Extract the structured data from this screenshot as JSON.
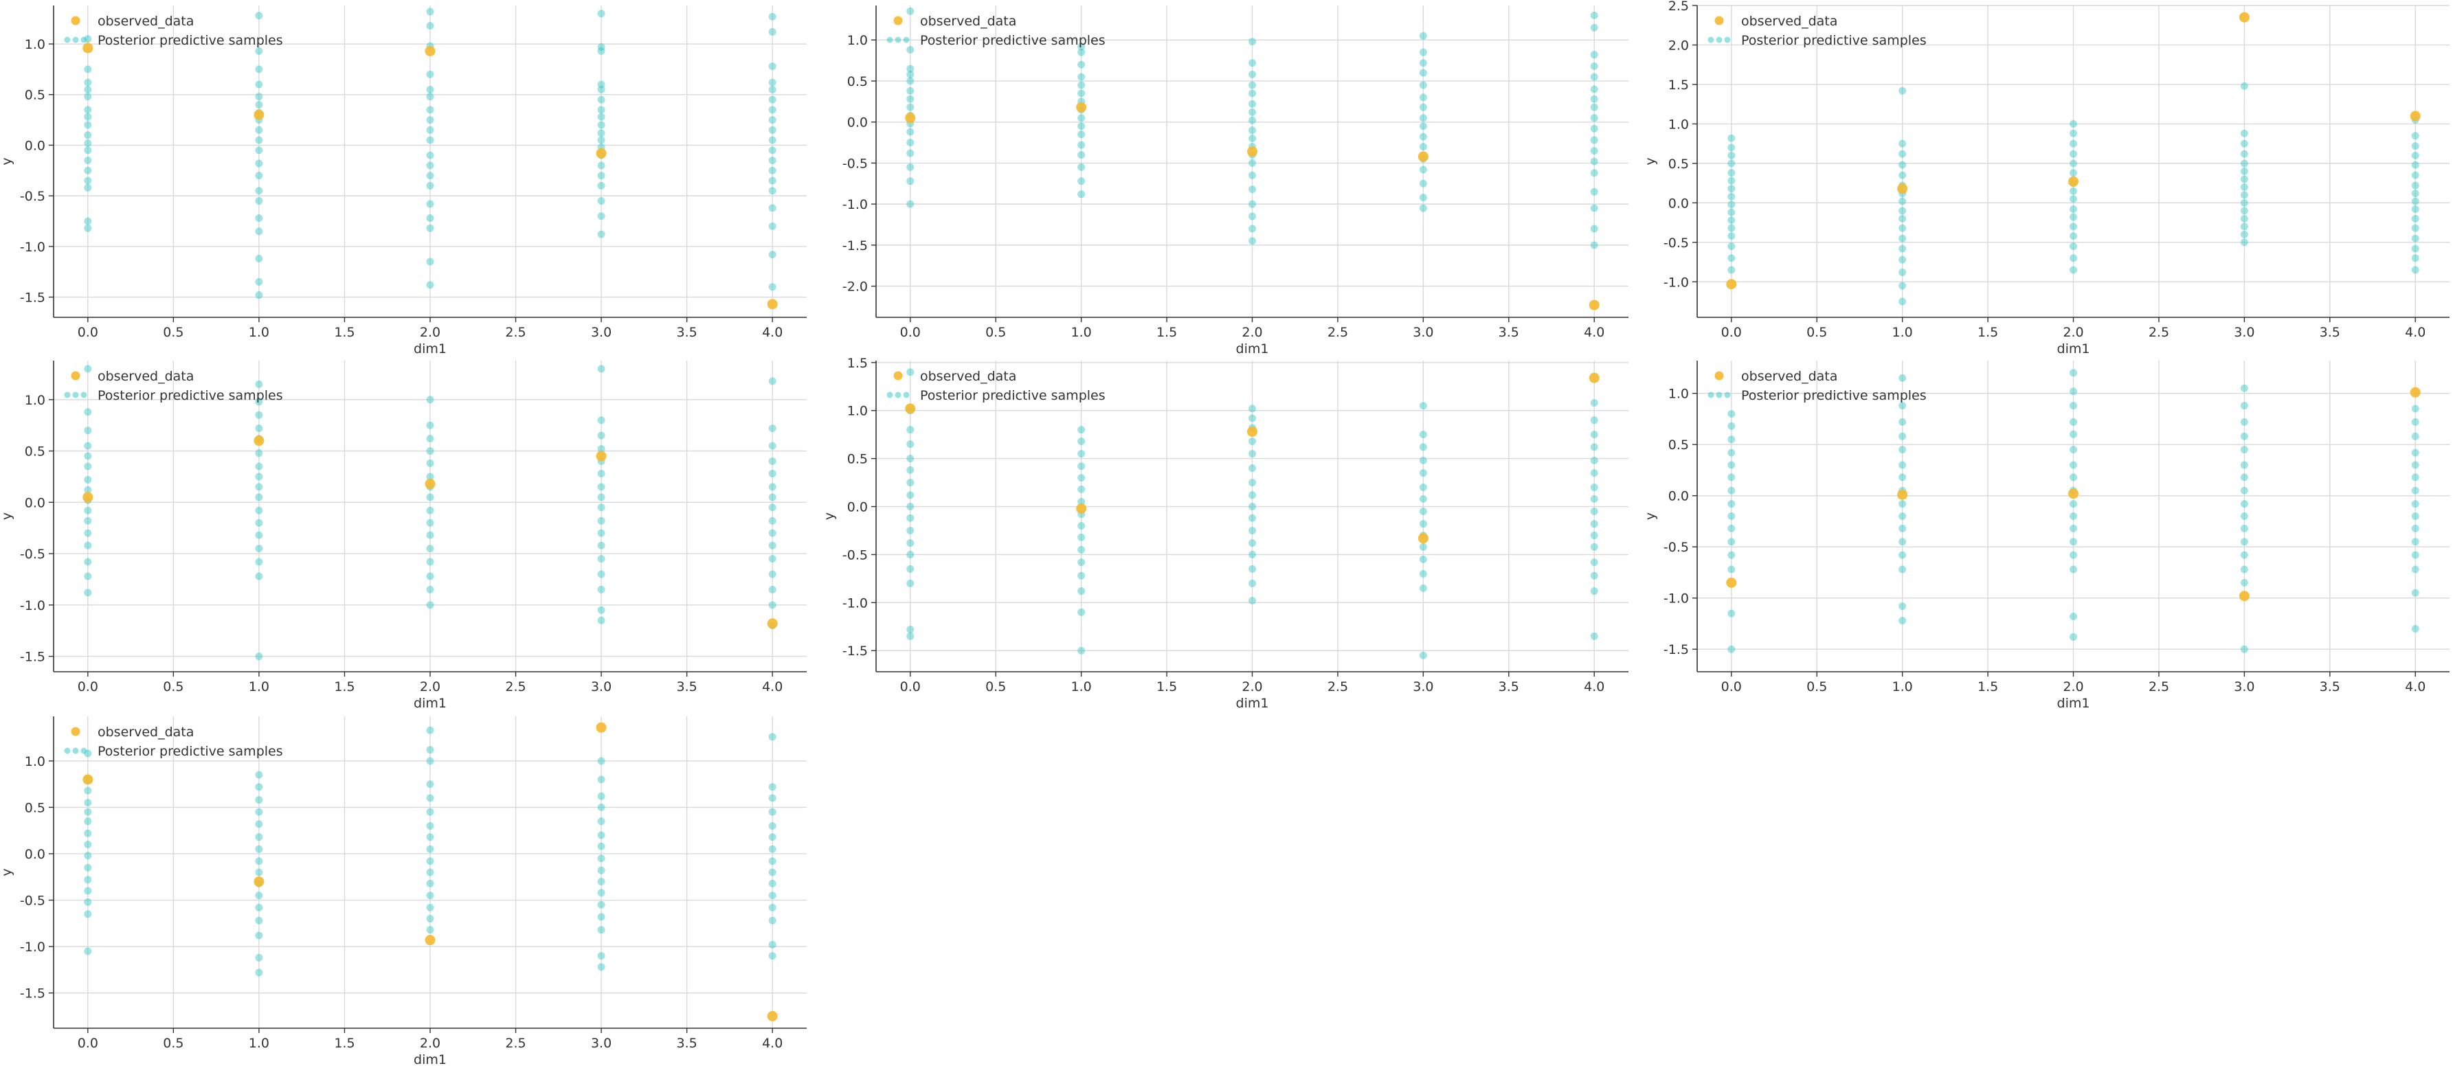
{
  "colors": {
    "observed": "#f5b82e",
    "samples": "#2ec4c4",
    "grid": "#d9d9d9",
    "axis": "#333333"
  },
  "legend": {
    "observed_label": "observed_data",
    "samples_label": "Posterior predictive samples",
    "placement": "upper-left"
  },
  "chart_data": [
    {
      "type": "scatter",
      "xlabel": "dim1",
      "ylabel": "y",
      "xlim": [
        -0.2,
        4.2
      ],
      "ylim": [
        -1.7,
        1.38
      ],
      "xticks": [
        0.0,
        0.5,
        1.0,
        1.5,
        2.0,
        2.5,
        3.0,
        3.5,
        4.0
      ],
      "yticks": [
        -1.5,
        -1.0,
        -0.5,
        0.0,
        0.5,
        1.0
      ],
      "grid": true,
      "observed": [
        [
          0,
          0.96
        ],
        [
          1,
          0.3
        ],
        [
          2,
          0.93
        ],
        [
          3,
          -0.08
        ],
        [
          4,
          -1.57
        ]
      ],
      "samples": [
        [
          -0.82,
          -0.75,
          -0.42,
          -0.35,
          -0.25,
          -0.15,
          -0.05,
          0.02,
          0.1,
          0.2,
          0.28,
          0.35,
          0.48,
          0.55,
          0.62,
          0.75,
          1.05
        ],
        [
          -1.48,
          -1.35,
          -1.12,
          -0.85,
          -0.72,
          -0.55,
          -0.45,
          -0.3,
          -0.18,
          -0.05,
          0.05,
          0.15,
          0.25,
          0.32,
          0.4,
          0.48,
          0.6,
          0.75,
          0.93,
          1.28
        ],
        [
          -1.38,
          -1.15,
          -0.82,
          -0.72,
          -0.58,
          -0.4,
          -0.3,
          -0.2,
          -0.1,
          0.05,
          0.15,
          0.25,
          0.35,
          0.48,
          0.55,
          0.7,
          0.98,
          1.18,
          1.32
        ],
        [
          -0.88,
          -0.7,
          -0.55,
          -0.4,
          -0.3,
          -0.2,
          -0.1,
          -0.02,
          0.05,
          0.12,
          0.2,
          0.28,
          0.35,
          0.45,
          0.55,
          0.6,
          0.93,
          0.97,
          1.3
        ],
        [
          -1.4,
          -1.08,
          -0.8,
          -0.62,
          -0.45,
          -0.35,
          -0.25,
          -0.15,
          -0.05,
          0.05,
          0.15,
          0.25,
          0.35,
          0.45,
          0.55,
          0.62,
          0.78,
          1.12,
          1.27
        ]
      ]
    },
    {
      "type": "scatter",
      "xlabel": "dim1",
      "ylabel": "",
      "xlim": [
        -0.2,
        4.2
      ],
      "ylim": [
        -2.38,
        1.42
      ],
      "xticks": [
        0.0,
        0.5,
        1.0,
        1.5,
        2.0,
        2.5,
        3.0,
        3.5,
        4.0
      ],
      "yticks": [
        -2.0,
        -1.5,
        -1.0,
        -0.5,
        0.0,
        0.5,
        1.0
      ],
      "grid": true,
      "observed": [
        [
          0,
          0.05
        ],
        [
          1,
          0.18
        ],
        [
          2,
          -0.36
        ],
        [
          3,
          -0.42
        ],
        [
          4,
          -2.23
        ]
      ],
      "samples": [
        [
          -1.0,
          -0.72,
          -0.55,
          -0.38,
          -0.25,
          -0.12,
          -0.02,
          0.08,
          0.18,
          0.28,
          0.38,
          0.5,
          0.58,
          0.65,
          0.88,
          1.35
        ],
        [
          -0.88,
          -0.72,
          -0.55,
          -0.4,
          -0.28,
          -0.15,
          -0.05,
          0.05,
          0.15,
          0.25,
          0.35,
          0.45,
          0.55,
          0.7,
          0.85,
          0.92
        ],
        [
          -1.45,
          -1.3,
          -1.15,
          -1.0,
          -0.82,
          -0.65,
          -0.5,
          -0.4,
          -0.3,
          -0.2,
          -0.1,
          0.02,
          0.12,
          0.22,
          0.35,
          0.45,
          0.58,
          0.72,
          0.98
        ],
        [
          -1.05,
          -0.92,
          -0.75,
          -0.58,
          -0.45,
          -0.3,
          -0.18,
          -0.05,
          0.05,
          0.18,
          0.3,
          0.45,
          0.6,
          0.72,
          0.85,
          1.05
        ],
        [
          -1.5,
          -1.3,
          -1.05,
          -0.85,
          -0.62,
          -0.48,
          -0.35,
          -0.22,
          -0.08,
          0.05,
          0.18,
          0.28,
          0.4,
          0.55,
          0.68,
          0.82,
          1.15,
          1.3
        ]
      ]
    },
    {
      "type": "scatter",
      "xlabel": "dim1",
      "ylabel": "y",
      "xlim": [
        -0.2,
        4.2
      ],
      "ylim": [
        -1.45,
        2.5
      ],
      "xticks": [
        0.0,
        0.5,
        1.0,
        1.5,
        2.0,
        2.5,
        3.0,
        3.5,
        4.0
      ],
      "yticks": [
        -1.0,
        -0.5,
        0.0,
        0.5,
        1.0,
        1.5,
        2.0,
        2.5
      ],
      "grid": true,
      "observed": [
        [
          0,
          -1.03
        ],
        [
          1,
          0.18
        ],
        [
          2,
          0.27
        ],
        [
          3,
          2.35
        ],
        [
          4,
          1.1
        ]
      ],
      "samples": [
        [
          -0.85,
          -0.7,
          -0.55,
          -0.42,
          -0.32,
          -0.22,
          -0.12,
          -0.02,
          0.08,
          0.18,
          0.28,
          0.38,
          0.5,
          0.6,
          0.7,
          0.82
        ],
        [
          -1.25,
          -1.05,
          -0.88,
          -0.72,
          -0.58,
          -0.45,
          -0.32,
          -0.2,
          -0.1,
          0.02,
          0.12,
          0.22,
          0.35,
          0.48,
          0.62,
          0.75,
          1.42
        ],
        [
          -0.85,
          -0.7,
          -0.55,
          -0.42,
          -0.3,
          -0.18,
          -0.08,
          0.05,
          0.15,
          0.25,
          0.38,
          0.5,
          0.62,
          0.75,
          0.88,
          1.0
        ],
        [
          -0.5,
          -0.4,
          -0.3,
          -0.2,
          -0.1,
          0.0,
          0.1,
          0.2,
          0.3,
          0.4,
          0.5,
          0.62,
          0.75,
          0.88,
          1.48
        ],
        [
          -0.85,
          -0.7,
          -0.58,
          -0.45,
          -0.32,
          -0.2,
          -0.08,
          0.02,
          0.12,
          0.22,
          0.35,
          0.48,
          0.6,
          0.72,
          0.85,
          1.05
        ]
      ]
    },
    {
      "type": "scatter",
      "xlabel": "dim1",
      "ylabel": "y",
      "xlim": [
        -0.2,
        4.2
      ],
      "ylim": [
        -1.65,
        1.38
      ],
      "xticks": [
        0.0,
        0.5,
        1.0,
        1.5,
        2.0,
        2.5,
        3.0,
        3.5,
        4.0
      ],
      "yticks": [
        -1.5,
        -1.0,
        -0.5,
        0.0,
        0.5,
        1.0
      ],
      "grid": true,
      "observed": [
        [
          0,
          0.05
        ],
        [
          1,
          0.6
        ],
        [
          2,
          0.18
        ],
        [
          3,
          0.45
        ],
        [
          4,
          -1.18
        ]
      ],
      "samples": [
        [
          -0.88,
          -0.72,
          -0.58,
          -0.42,
          -0.3,
          -0.18,
          -0.08,
          0.02,
          0.12,
          0.22,
          0.35,
          0.45,
          0.55,
          0.7,
          0.88,
          1.3
        ],
        [
          -1.5,
          -0.72,
          -0.58,
          -0.45,
          -0.32,
          -0.2,
          -0.08,
          0.05,
          0.15,
          0.25,
          0.35,
          0.48,
          0.62,
          0.72,
          0.85,
          0.98,
          1.15
        ],
        [
          -1.0,
          -0.85,
          -0.72,
          -0.58,
          -0.45,
          -0.32,
          -0.2,
          -0.08,
          0.05,
          0.15,
          0.25,
          0.38,
          0.5,
          0.62,
          0.75,
          1.0
        ],
        [
          -1.15,
          -1.05,
          -0.85,
          -0.7,
          -0.55,
          -0.42,
          -0.3,
          -0.18,
          -0.05,
          0.05,
          0.15,
          0.28,
          0.4,
          0.52,
          0.65,
          0.8,
          1.3
        ],
        [
          -1.2,
          -1.0,
          -0.85,
          -0.7,
          -0.55,
          -0.42,
          -0.3,
          -0.18,
          -0.05,
          0.05,
          0.15,
          0.28,
          0.4,
          0.55,
          0.72,
          1.18
        ]
      ]
    },
    {
      "type": "scatter",
      "xlabel": "dim1",
      "ylabel": "y",
      "xlim": [
        -0.2,
        4.2
      ],
      "ylim": [
        -1.72,
        1.52
      ],
      "xticks": [
        0.0,
        0.5,
        1.0,
        1.5,
        2.0,
        2.5,
        3.0,
        3.5,
        4.0
      ],
      "yticks": [
        -1.5,
        -1.0,
        -0.5,
        0.0,
        0.5,
        1.0,
        1.5
      ],
      "grid": true,
      "observed": [
        [
          0,
          1.02
        ],
        [
          1,
          -0.02
        ],
        [
          2,
          0.78
        ],
        [
          3,
          -0.33
        ],
        [
          4,
          1.34
        ]
      ],
      "samples": [
        [
          -1.35,
          -1.28,
          -0.8,
          -0.65,
          -0.5,
          -0.38,
          -0.25,
          -0.12,
          0.0,
          0.12,
          0.25,
          0.38,
          0.5,
          0.65,
          0.8,
          1.0,
          1.4
        ],
        [
          -1.5,
          -1.1,
          -0.88,
          -0.72,
          -0.58,
          -0.45,
          -0.32,
          -0.2,
          -0.08,
          0.05,
          0.18,
          0.3,
          0.42,
          0.55,
          0.68,
          0.8
        ],
        [
          -0.98,
          -0.8,
          -0.65,
          -0.5,
          -0.38,
          -0.25,
          -0.12,
          0.0,
          0.12,
          0.25,
          0.4,
          0.55,
          0.68,
          0.82,
          0.92,
          1.02
        ],
        [
          -1.55,
          -0.85,
          -0.7,
          -0.55,
          -0.42,
          -0.3,
          -0.18,
          -0.05,
          0.08,
          0.2,
          0.35,
          0.48,
          0.62,
          0.75,
          1.05
        ],
        [
          -1.35,
          -0.88,
          -0.72,
          -0.58,
          -0.42,
          -0.3,
          -0.18,
          -0.05,
          0.08,
          0.2,
          0.35,
          0.48,
          0.62,
          0.75,
          0.9,
          1.08
        ]
      ]
    },
    {
      "type": "scatter",
      "xlabel": "dim1",
      "ylabel": "y",
      "xlim": [
        -0.2,
        4.2
      ],
      "ylim": [
        -1.72,
        1.32
      ],
      "xticks": [
        0.0,
        0.5,
        1.0,
        1.5,
        2.0,
        2.5,
        3.0,
        3.5,
        4.0
      ],
      "yticks": [
        -1.5,
        -1.0,
        -0.5,
        0.0,
        0.5,
        1.0
      ],
      "grid": true,
      "observed": [
        [
          0,
          -0.85
        ],
        [
          1,
          0.01
        ],
        [
          2,
          0.02
        ],
        [
          3,
          -0.98
        ],
        [
          4,
          1.01
        ]
      ],
      "samples": [
        [
          -1.5,
          -1.15,
          -0.72,
          -0.58,
          -0.45,
          -0.32,
          -0.2,
          -0.08,
          0.05,
          0.18,
          0.3,
          0.42,
          0.55,
          0.68,
          0.8
        ],
        [
          -1.22,
          -1.08,
          -0.72,
          -0.58,
          -0.45,
          -0.32,
          -0.2,
          -0.08,
          0.05,
          0.18,
          0.3,
          0.45,
          0.58,
          0.72,
          0.88,
          1.15
        ],
        [
          -1.38,
          -1.18,
          -0.72,
          -0.58,
          -0.45,
          -0.32,
          -0.2,
          -0.08,
          0.05,
          0.18,
          0.3,
          0.45,
          0.6,
          0.72,
          0.88,
          1.02,
          1.2
        ],
        [
          -1.5,
          -0.85,
          -0.72,
          -0.58,
          -0.45,
          -0.32,
          -0.2,
          -0.08,
          0.05,
          0.18,
          0.3,
          0.45,
          0.58,
          0.72,
          0.88,
          1.05
        ],
        [
          -1.3,
          -0.95,
          -0.72,
          -0.58,
          -0.45,
          -0.32,
          -0.2,
          -0.08,
          0.05,
          0.18,
          0.3,
          0.42,
          0.58,
          0.72,
          0.85
        ]
      ]
    },
    {
      "type": "scatter",
      "xlabel": "dim1",
      "ylabel": "y",
      "xlim": [
        -0.2,
        4.2
      ],
      "ylim": [
        -1.88,
        1.48
      ],
      "xticks": [
        0.0,
        0.5,
        1.0,
        1.5,
        2.0,
        2.5,
        3.0,
        3.5,
        4.0
      ],
      "yticks": [
        -1.5,
        -1.0,
        -0.5,
        0.0,
        0.5,
        1.0
      ],
      "grid": true,
      "observed": [
        [
          0,
          0.8
        ],
        [
          1,
          -0.3
        ],
        [
          2,
          -0.93
        ],
        [
          3,
          1.36
        ],
        [
          4,
          -1.75
        ]
      ],
      "samples": [
        [
          -1.05,
          -0.65,
          -0.52,
          -0.4,
          -0.28,
          -0.15,
          -0.02,
          0.1,
          0.22,
          0.35,
          0.45,
          0.55,
          0.68,
          0.8,
          1.08
        ],
        [
          -1.28,
          -1.12,
          -0.88,
          -0.72,
          -0.58,
          -0.45,
          -0.32,
          -0.2,
          -0.08,
          0.05,
          0.18,
          0.32,
          0.45,
          0.58,
          0.72,
          0.85
        ],
        [
          -0.82,
          -0.7,
          -0.58,
          -0.45,
          -0.32,
          -0.2,
          -0.08,
          0.05,
          0.18,
          0.3,
          0.45,
          0.6,
          0.75,
          1.0,
          1.12,
          1.33
        ],
        [
          -1.22,
          -1.1,
          -0.82,
          -0.68,
          -0.55,
          -0.42,
          -0.3,
          -0.18,
          -0.05,
          0.08,
          0.2,
          0.35,
          0.5,
          0.62,
          0.8,
          1.0
        ],
        [
          -1.1,
          -0.98,
          -0.72,
          -0.58,
          -0.45,
          -0.32,
          -0.2,
          -0.08,
          0.05,
          0.18,
          0.3,
          0.45,
          0.6,
          0.72,
          1.26
        ]
      ]
    }
  ]
}
